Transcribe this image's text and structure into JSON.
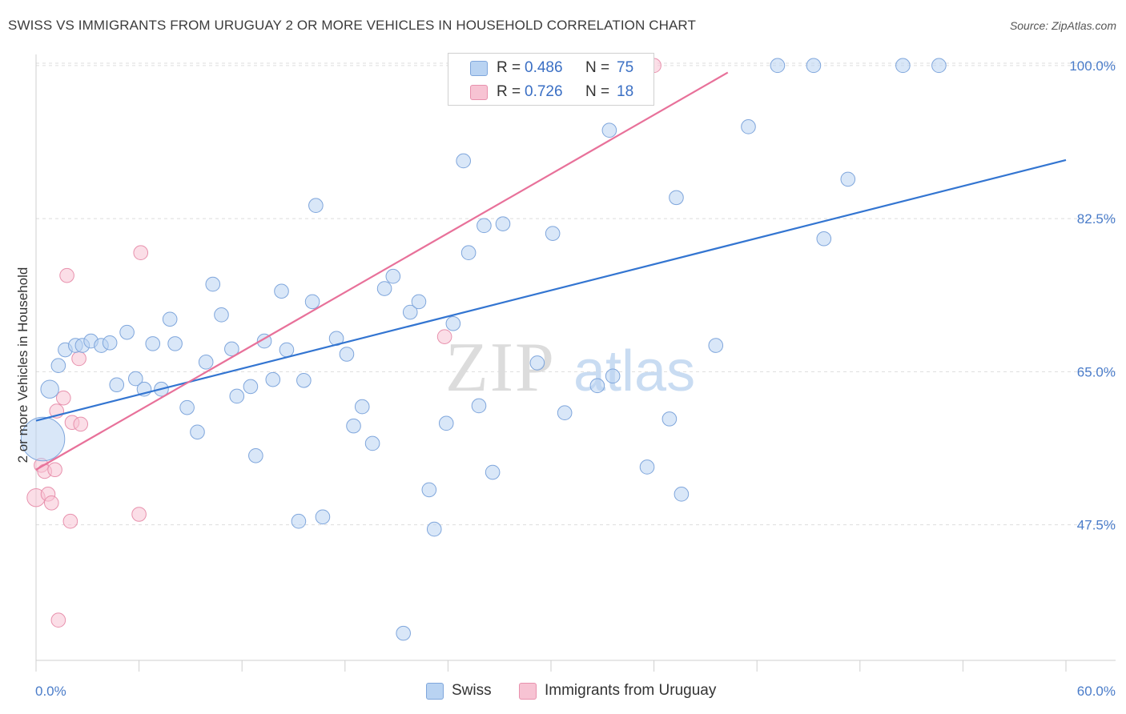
{
  "header": {
    "title": "SWISS VS IMMIGRANTS FROM URUGUAY 2 OR MORE VEHICLES IN HOUSEHOLD CORRELATION CHART",
    "source": "Source: ZipAtlas.com"
  },
  "watermark": {
    "zip": "ZIP",
    "atlas": "atlas"
  },
  "legend": {
    "rows": [
      {
        "r_label": "R =",
        "r_value": "0.486",
        "n_label": "N =",
        "n_value": "75",
        "color": "#a8c8ef"
      },
      {
        "r_label": "R =",
        "r_value": "0.726",
        "n_label": "N =",
        "n_value": "18",
        "color": "#f6b9cb"
      }
    ]
  },
  "bottom_legend": {
    "swiss": "Swiss",
    "uruguay": "Immigrants from Uruguay"
  },
  "chart_data": {
    "type": "scatter",
    "title": "SWISS VS IMMIGRANTS FROM URUGUAY 2 OR MORE VEHICLES IN HOUSEHOLD CORRELATION CHART",
    "xlabel": "",
    "ylabel": "2 or more Vehicles in Household",
    "xlim": [
      0,
      60
    ],
    "ylim": [
      32,
      102
    ],
    "x_tick_labels": [
      "0.0%",
      "60.0%"
    ],
    "y_ticks": [
      47.5,
      65.0,
      82.5,
      100.0
    ],
    "y_tick_labels": [
      "47.5%",
      "65.0%",
      "82.5%",
      "100.0%"
    ],
    "grid": true,
    "legend_position": "top-center",
    "colors": {
      "swiss": "#3375d1",
      "swiss_fill": "#b9d3f2",
      "uruguay": "#e8719a",
      "uruguay_fill": "#f7c3d3"
    },
    "series": [
      {
        "name": "Swiss",
        "r": 0.486,
        "n": 75,
        "trend": {
          "x": [
            0,
            60
          ],
          "y": [
            59.4,
            89.2
          ]
        },
        "points": [
          [
            0.4,
            57.3,
            34
          ],
          [
            0.8,
            63.0,
            14
          ],
          [
            1.3,
            65.7,
            11
          ],
          [
            1.7,
            67.5,
            11
          ],
          [
            2.3,
            68.0,
            11
          ],
          [
            2.7,
            68.0,
            11
          ],
          [
            3.2,
            68.5,
            11
          ],
          [
            3.8,
            68.0,
            11
          ],
          [
            4.3,
            68.3,
            11
          ],
          [
            4.7,
            63.5,
            11
          ],
          [
            5.3,
            69.5,
            11
          ],
          [
            5.8,
            64.2,
            11
          ],
          [
            6.3,
            63.0,
            11
          ],
          [
            6.8,
            68.2,
            11
          ],
          [
            7.3,
            63.0,
            11
          ],
          [
            7.8,
            71.0,
            11
          ],
          [
            8.1,
            68.2,
            11
          ],
          [
            8.8,
            60.9,
            11
          ],
          [
            9.4,
            58.1,
            11
          ],
          [
            9.9,
            66.1,
            11
          ],
          [
            10.3,
            75.0,
            11
          ],
          [
            10.8,
            71.5,
            11
          ],
          [
            11.4,
            67.6,
            11
          ],
          [
            11.7,
            62.2,
            11
          ],
          [
            12.5,
            63.3,
            11
          ],
          [
            12.8,
            55.4,
            11
          ],
          [
            13.3,
            68.5,
            11
          ],
          [
            13.8,
            64.1,
            11
          ],
          [
            14.3,
            74.2,
            11
          ],
          [
            14.6,
            67.5,
            11
          ],
          [
            15.3,
            47.9,
            11
          ],
          [
            15.6,
            64.0,
            11
          ],
          [
            16.1,
            73.0,
            11
          ],
          [
            16.3,
            84.0,
            11
          ],
          [
            16.7,
            48.4,
            11
          ],
          [
            17.5,
            68.8,
            11
          ],
          [
            18.1,
            67.0,
            11
          ],
          [
            18.5,
            58.8,
            11
          ],
          [
            19.0,
            61.0,
            11
          ],
          [
            19.6,
            56.8,
            11
          ],
          [
            20.3,
            74.5,
            11
          ],
          [
            20.8,
            75.9,
            11
          ],
          [
            21.4,
            35.1,
            11
          ],
          [
            21.8,
            71.8,
            11
          ],
          [
            22.3,
            73.0,
            11
          ],
          [
            22.9,
            51.5,
            11
          ],
          [
            23.2,
            47.0,
            11
          ],
          [
            23.9,
            59.1,
            11
          ],
          [
            24.3,
            70.5,
            11
          ],
          [
            24.9,
            89.1,
            11
          ],
          [
            25.2,
            78.6,
            11
          ],
          [
            25.8,
            61.1,
            11
          ],
          [
            26.1,
            81.7,
            11
          ],
          [
            26.6,
            53.5,
            11
          ],
          [
            27.2,
            81.9,
            11
          ],
          [
            29.2,
            66.0,
            11
          ],
          [
            30.1,
            80.8,
            11
          ],
          [
            30.8,
            60.3,
            11
          ],
          [
            31.9,
            100.0,
            11
          ],
          [
            32.7,
            63.4,
            11
          ],
          [
            33.4,
            92.6,
            11
          ],
          [
            33.6,
            64.5,
            11
          ],
          [
            35.2,
            98.0,
            11
          ],
          [
            35.6,
            54.1,
            11
          ],
          [
            36.9,
            59.6,
            11
          ],
          [
            37.3,
            84.9,
            11
          ],
          [
            37.6,
            51.0,
            11
          ],
          [
            39.6,
            68.0,
            11
          ],
          [
            41.5,
            93.0,
            11
          ],
          [
            43.2,
            100.0,
            11
          ],
          [
            45.3,
            100.0,
            11
          ],
          [
            45.9,
            80.2,
            11
          ],
          [
            47.3,
            87.0,
            11
          ],
          [
            50.5,
            100.0,
            11
          ],
          [
            52.6,
            100.0,
            11
          ]
        ]
      },
      {
        "name": "Immigrants from Uruguay",
        "r": 0.726,
        "n": 18,
        "trend": {
          "x": [
            0,
            40.3
          ],
          "y": [
            53.8,
            99.2
          ]
        },
        "points": [
          [
            0.0,
            50.6,
            14
          ],
          [
            0.3,
            54.3,
            11
          ],
          [
            0.5,
            53.6,
            11
          ],
          [
            0.7,
            51.0,
            11
          ],
          [
            0.9,
            50.0,
            11
          ],
          [
            1.1,
            53.8,
            11
          ],
          [
            1.2,
            60.5,
            11
          ],
          [
            1.3,
            36.6,
            11
          ],
          [
            1.6,
            62.0,
            11
          ],
          [
            1.8,
            76.0,
            11
          ],
          [
            2.0,
            47.9,
            11
          ],
          [
            2.1,
            59.2,
            11
          ],
          [
            2.5,
            66.5,
            11
          ],
          [
            2.6,
            59.0,
            11
          ],
          [
            6.0,
            48.7,
            11
          ],
          [
            6.1,
            78.6,
            11
          ],
          [
            23.8,
            69.0,
            11
          ],
          [
            36.0,
            100.0,
            11
          ]
        ]
      }
    ]
  }
}
